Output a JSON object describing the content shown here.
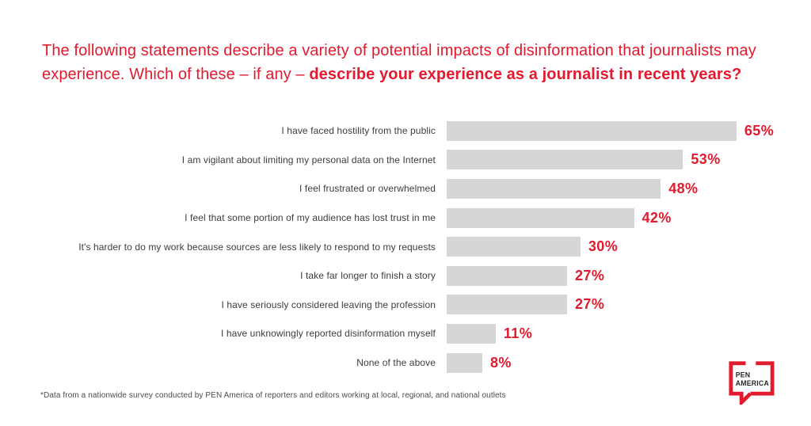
{
  "page": {
    "background": "#ffffff"
  },
  "title": {
    "regular": "The following statements describe a variety of potential impacts of disinformation that journalists may experience. Which of these – if any – ",
    "bold": "describe your experience as a journalist in recent years?"
  },
  "chart_data": {
    "type": "bar",
    "orientation": "horizontal",
    "categories": [
      "I have faced hostility from the public",
      "I am vigilant about limiting my personal data on the Internet",
      "I feel frustrated or overwhelmed",
      "I feel that some portion of my audience has lost trust in me",
      "It's harder to do my work because sources are less likely to respond to my requests",
      "I take far longer to finish a story",
      "I have seriously considered leaving the profession",
      "I have unknowingly reported disinformation myself",
      "None of the above"
    ],
    "values": [
      65,
      53,
      48,
      42,
      30,
      27,
      27,
      11,
      8
    ],
    "value_suffix": "%",
    "xlim": [
      0,
      100
    ],
    "grid": false,
    "legend": false,
    "bar_color": "#d6d6d6",
    "value_label_color": "#e11a2e"
  },
  "footnote": "*Data from a nationwide survey conducted by PEN America of reporters and editors working at local, regional, and national outlets",
  "logo": {
    "line1": "PEN",
    "line2": "AMERICA"
  },
  "colors": {
    "accent_red": "#e11a2e",
    "bar_gray": "#d6d6d6",
    "label_text": "#3c3c3c",
    "footnote_text": "#4b4b4b",
    "logo_text": "#2a2627"
  }
}
